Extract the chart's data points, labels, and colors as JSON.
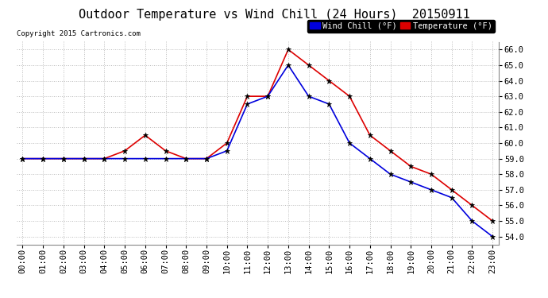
{
  "title": "Outdoor Temperature vs Wind Chill (24 Hours)  20150911",
  "copyright": "Copyright 2015 Cartronics.com",
  "legend_wind_chill": "Wind Chill (°F)",
  "legend_temperature": "Temperature (°F)",
  "hours": [
    0,
    1,
    2,
    3,
    4,
    5,
    6,
    7,
    8,
    9,
    10,
    11,
    12,
    13,
    14,
    15,
    16,
    17,
    18,
    19,
    20,
    21,
    22,
    23
  ],
  "temperature": [
    59.0,
    59.0,
    59.0,
    59.0,
    59.0,
    59.5,
    60.5,
    59.5,
    59.0,
    59.0,
    60.0,
    63.0,
    63.0,
    66.0,
    65.0,
    64.0,
    63.0,
    60.5,
    59.5,
    58.5,
    58.0,
    57.0,
    56.0,
    55.0
  ],
  "wind_chill": [
    59.0,
    59.0,
    59.0,
    59.0,
    59.0,
    59.0,
    59.0,
    59.0,
    59.0,
    59.0,
    59.5,
    62.5,
    63.0,
    65.0,
    63.0,
    62.5,
    60.0,
    59.0,
    58.0,
    57.5,
    57.0,
    56.5,
    55.0,
    54.0
  ],
  "ylim": [
    53.5,
    66.5
  ],
  "yticks": [
    54.0,
    55.0,
    56.0,
    57.0,
    58.0,
    59.0,
    60.0,
    61.0,
    62.0,
    63.0,
    64.0,
    65.0,
    66.0
  ],
  "temp_color": "#dd0000",
  "wind_color": "#0000dd",
  "background_color": "#ffffff",
  "plot_bg_color": "#ffffff",
  "grid_color": "#bbbbbb",
  "title_fontsize": 11,
  "tick_fontsize": 7.5,
  "legend_fontsize": 7.5
}
